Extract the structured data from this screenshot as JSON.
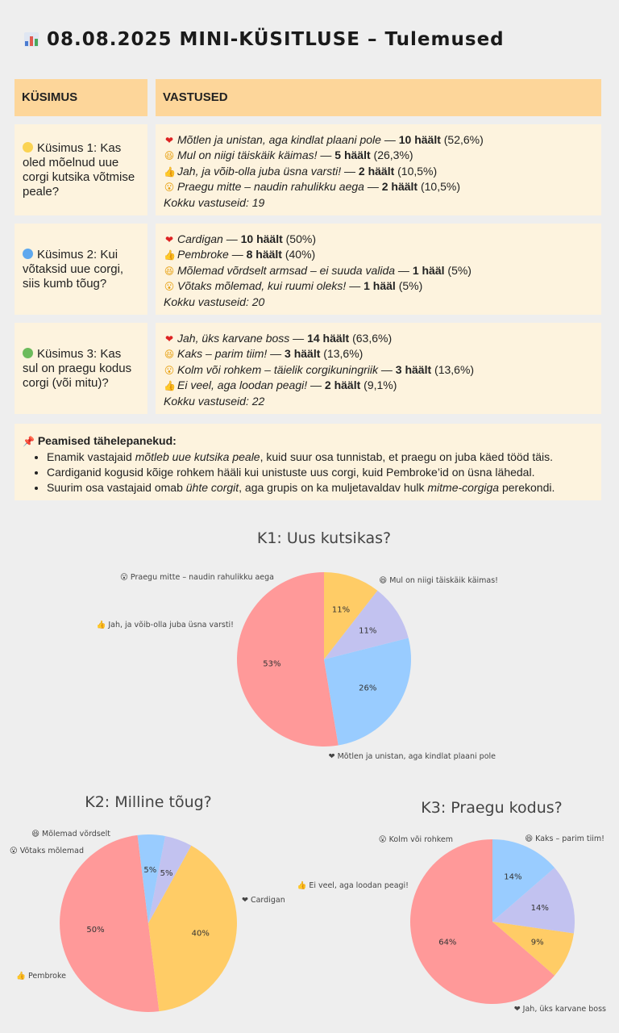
{
  "header": {
    "title": "08.08.2025 MINI-KÜSITLUSE – Tulemused",
    "icon": "bar-chart-icon"
  },
  "table": {
    "col_question": "KÜSIMUS",
    "col_answers": "VASTUSED",
    "rows": [
      {
        "dot_color": "#fbd352",
        "question": "Küsimus 1: Kas oled mõelnud uue corgi kutsika võtmise peale?",
        "answers": [
          {
            "icon": "heart-icon",
            "glyph": "❤",
            "text": "Mõtlen ja unistan, aga kindlat plaani pole",
            "votes": "10 häält",
            "pct": "(52,6%)"
          },
          {
            "icon": "grin-icon",
            "glyph": "😆",
            "text": "Mul on niigi täiskäik käimas!",
            "votes": "5 häält",
            "pct": "(26,3%)"
          },
          {
            "icon": "thumbs-up-icon",
            "glyph": "👍",
            "text": "Jah, ja võib-olla juba üsna varsti!",
            "votes": "2 häält",
            "pct": "(10,5%)"
          },
          {
            "icon": "surprised-icon",
            "glyph": "😮",
            "text": "Praegu mitte – naudin rahulikku aega",
            "votes": "2 häält",
            "pct": "(10,5%)"
          }
        ],
        "total": "Kokku vastuseid: 19"
      },
      {
        "dot_color": "#5ea8ee",
        "question": "Küsimus 2: Kui võtaksid uue corgi, siis kumb tõug?",
        "answers": [
          {
            "icon": "heart-icon",
            "glyph": "❤",
            "text": "Cardigan",
            "votes": "10 häält",
            "pct": "(50%)"
          },
          {
            "icon": "thumbs-up-icon",
            "glyph": "👍",
            "text": "Pembroke",
            "votes": "8 häält",
            "pct": "(40%)"
          },
          {
            "icon": "grin-icon",
            "glyph": "😆",
            "text": "Mõlemad võrdselt armsad – ei suuda valida",
            "votes": "1 hääl",
            "pct": "(5%)"
          },
          {
            "icon": "surprised-icon",
            "glyph": "😮",
            "text": "Võtaks mõlemad, kui ruumi oleks!",
            "votes": "1 hääl",
            "pct": "(5%)"
          }
        ],
        "total": "Kokku vastuseid: 20"
      },
      {
        "dot_color": "#6cbb5c",
        "question": "Küsimus 3: Kas sul on praegu kodus corgi (või mitu)?",
        "answers": [
          {
            "icon": "heart-icon",
            "glyph": "❤",
            "text": "Jah, üks karvane boss",
            "votes": "14 häält",
            "pct": "(63,6%)"
          },
          {
            "icon": "grin-icon",
            "glyph": "😆",
            "text": "Kaks – parim tiim!",
            "votes": "3 häält",
            "pct": "(13,6%)"
          },
          {
            "icon": "surprised-icon",
            "glyph": "😮",
            "text": "Kolm või rohkem – täielik corgikuningriik",
            "votes": "3 häält",
            "pct": "(13,6%)"
          },
          {
            "icon": "thumbs-up-icon",
            "glyph": "👍",
            "text": "Ei veel, aga loodan peagi!",
            "votes": "2 häält",
            "pct": "(9,1%)"
          }
        ],
        "total": "Kokku vastuseid: 22"
      }
    ]
  },
  "notes": {
    "icon": "pin-icon",
    "title": "Peamised tähelepanekud:",
    "items": [
      {
        "pre": "Enamik vastajaid ",
        "em": "mõtleb uue kutsika peale",
        "post": ", kuid suur osa tunnistab, et praegu on juba käed tööd täis.",
        "em2": "",
        "post2": ""
      },
      {
        "pre": "Cardiganid kogusid kõige rohkem hääli kui unistuste uus corgi, kuid Pembroke’id on üsna lähedal.",
        "em": "",
        "post": "",
        "em2": "",
        "post2": ""
      },
      {
        "pre": "Suurim osa vastajaid omab ",
        "em": "ühte corgit",
        "post": ", aga grupis on ka muljetavaldav hulk ",
        "em2": "mitme-corgiga",
        "post2": " perekondi."
      }
    ]
  },
  "chart_data": [
    {
      "type": "pie",
      "title": "K1: Uus kutsikas?",
      "labels": [
        "❤ Mõtlen ja unistan, aga kindlat plaani pole",
        "😆 Mul on niigi täiskäik käimas!",
        "😮 Praegu mitte – naudin rahulikku aega",
        "👍 Jah, ja võib-olla juba üsna varsti!"
      ],
      "values": [
        10,
        5,
        2,
        2
      ],
      "pct_labels": [
        "53%",
        "26%",
        "11%",
        "11%"
      ],
      "colors": [
        "#ff9999",
        "#99ccff",
        "#c2c2f0",
        "#ffcc66"
      ]
    },
    {
      "type": "pie",
      "title": "K2: Milline tõug?",
      "labels": [
        "❤ Cardigan",
        "👍 Pembroke",
        "😮 Võtaks mõlemad",
        "😆 Mõlemad võrdselt"
      ],
      "values": [
        10,
        8,
        1,
        1
      ],
      "pct_labels": [
        "50%",
        "40%",
        "5%",
        "5%"
      ],
      "colors": [
        "#ff9999",
        "#ffcc66",
        "#c2c2f0",
        "#99ccff"
      ]
    },
    {
      "type": "pie",
      "title": "K3: Praegu kodus?",
      "labels": [
        "❤ Jah, üks karvane boss",
        "👍 Ei veel, aga loodan peagi!",
        "😮 Kolm või rohkem",
        "😆 Kaks – parim tiim!"
      ],
      "values": [
        14,
        2,
        3,
        3
      ],
      "pct_labels": [
        "64%",
        "9%",
        "14%",
        "14%"
      ],
      "colors": [
        "#ff9999",
        "#ffcc66",
        "#c2c2f0",
        "#99ccff"
      ]
    }
  ]
}
